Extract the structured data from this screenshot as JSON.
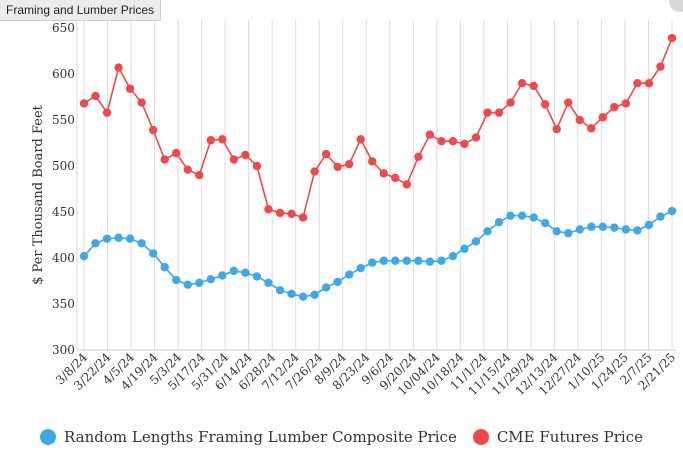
{
  "window": {
    "title": "Framing and Lumber Prices"
  },
  "chart_data": {
    "type": "line",
    "title": "Framing and Lumber Prices",
    "ylabel": "$ Per Thousand Board Feet",
    "xlabel": "",
    "ylim": [
      300,
      650
    ],
    "yticks": [
      300,
      350,
      400,
      450,
      500,
      550,
      600,
      650
    ],
    "grid": {
      "vertical": true,
      "horizontal": false
    },
    "legend_position": "bottom",
    "x_labels": [
      "3/8/24",
      "3/22/24",
      "4/5/24",
      "4/19/24",
      "5/3/24",
      "5/17/24",
      "5/31/24",
      "6/14/24",
      "6/28/24",
      "7/12/24",
      "7/26/24",
      "8/9/24",
      "8/23/24",
      "9/6/24",
      "9/20/24",
      "10/04/24",
      "10/18/24",
      "11/1/24",
      "11/15/24",
      "11/29/24",
      "12/13/24",
      "12/27/24",
      "1/10/25",
      "1/24/25",
      "2/7/25",
      "2/21/25"
    ],
    "series": [
      {
        "name": "Random Lengths Framing Lumber Composite Price",
        "color": "#3fa9e8",
        "values": [
          402,
          416,
          421,
          422,
          421,
          416,
          405,
          390,
          376,
          371,
          373,
          377,
          381,
          386,
          384,
          380,
          373,
          365,
          361,
          358,
          360,
          368,
          374,
          382,
          389,
          395,
          397,
          397,
          397,
          397,
          396,
          397,
          402,
          410,
          418,
          429,
          439,
          446,
          446,
          444,
          438,
          429,
          427,
          431,
          434,
          434,
          433,
          431,
          430,
          436,
          445,
          451
        ]
      },
      {
        "name": "CME Futures Price",
        "color": "#ee4a4a",
        "values": [
          568,
          576,
          558,
          607,
          584,
          569,
          539,
          507,
          514,
          496,
          490,
          528,
          529,
          507,
          512,
          500,
          453,
          449,
          448,
          444,
          494,
          513,
          499,
          502,
          529,
          505,
          492,
          487,
          480,
          510,
          534,
          527,
          527,
          524,
          531,
          558,
          558,
          569,
          590,
          587,
          567,
          540,
          569,
          550,
          541,
          553,
          564,
          568,
          590,
          590,
          608,
          639
        ]
      }
    ]
  },
  "legend": {
    "items": [
      {
        "label": "Random Lengths Framing Lumber Composite Price",
        "color": "#3fa9e8"
      },
      {
        "label": "CME Futures Price",
        "color": "#ee4a4a"
      }
    ]
  }
}
